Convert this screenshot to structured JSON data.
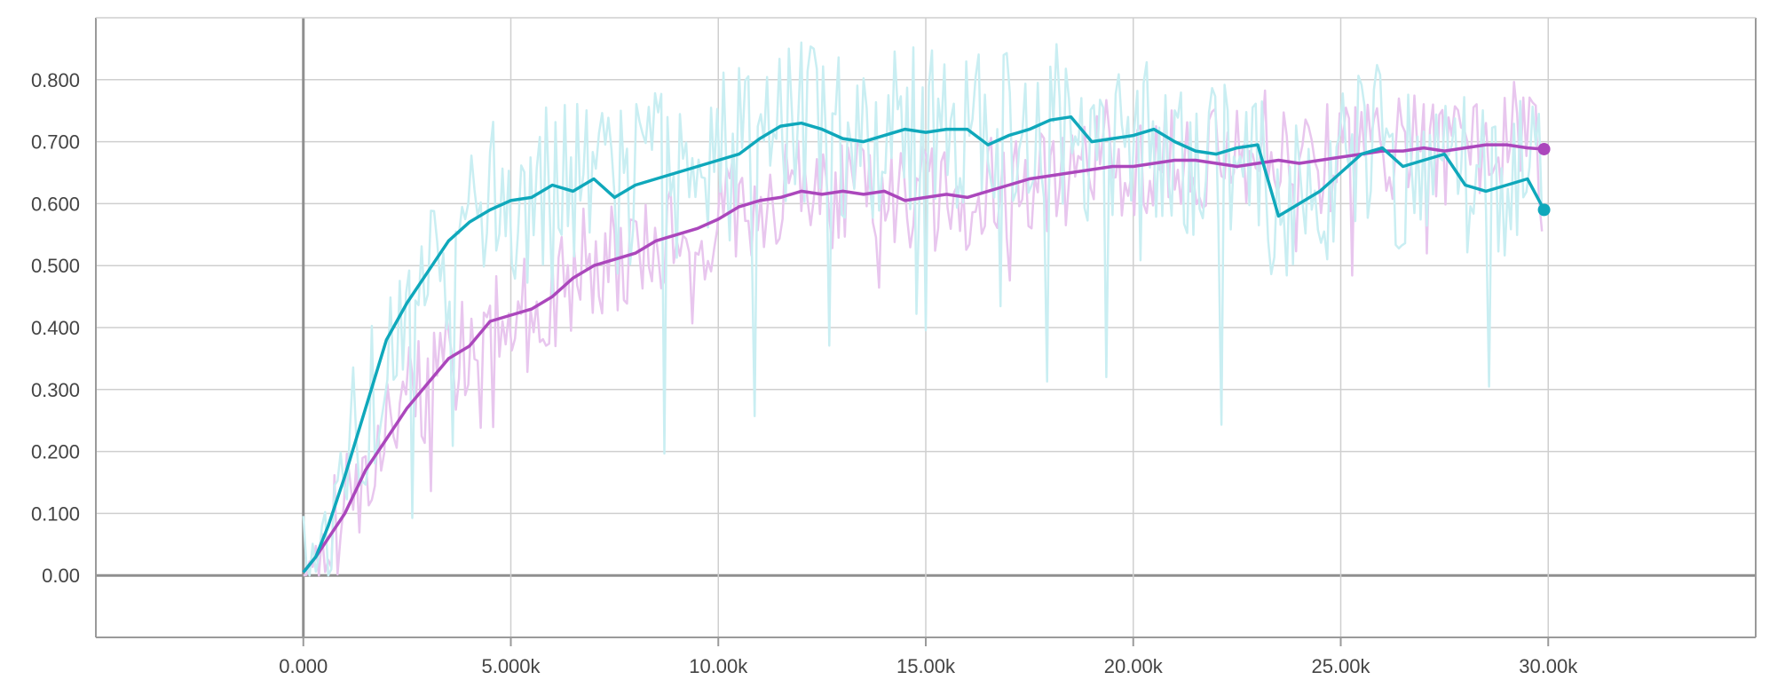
{
  "chart_data": {
    "type": "line",
    "xlim": [
      -5000,
      35000
    ],
    "ylim": [
      -0.1,
      0.9
    ],
    "x_ticks": [
      0,
      5000,
      10000,
      15000,
      20000,
      25000,
      30000
    ],
    "x_tick_labels": [
      "0.000",
      "5.000k",
      "10.00k",
      "15.00k",
      "20.00k",
      "25.00k",
      "30.00k"
    ],
    "y_ticks": [
      0,
      0.1,
      0.2,
      0.3,
      0.4,
      0.5,
      0.6,
      0.7,
      0.8
    ],
    "y_tick_labels": [
      "0.00",
      "0.100",
      "0.200",
      "0.300",
      "0.400",
      "0.500",
      "0.600",
      "0.700",
      "0.800"
    ],
    "grid": true,
    "legend": "none",
    "series": [
      {
        "color": "#ab47bc",
        "raw_color": "#e8c6ee",
        "x": [
          0,
          300,
          600,
          1000,
          1500,
          2000,
          2500,
          3000,
          3500,
          4000,
          4500,
          5000,
          5500,
          6000,
          6500,
          7000,
          7500,
          8000,
          8500,
          9000,
          9500,
          10000,
          10500,
          11000,
          11500,
          12000,
          12500,
          13000,
          13500,
          14000,
          14500,
          15000,
          15500,
          16000,
          16500,
          17000,
          17500,
          18000,
          18500,
          19000,
          19500,
          20000,
          20500,
          21000,
          21500,
          22000,
          22500,
          23000,
          23500,
          24000,
          24500,
          25000,
          25500,
          26000,
          26500,
          27000,
          27500,
          28000,
          28500,
          29000,
          29500,
          29900
        ],
        "smoothed": [
          0.005,
          0.03,
          0.06,
          0.1,
          0.17,
          0.22,
          0.27,
          0.31,
          0.35,
          0.37,
          0.41,
          0.42,
          0.43,
          0.45,
          0.48,
          0.5,
          0.51,
          0.52,
          0.54,
          0.55,
          0.56,
          0.575,
          0.595,
          0.605,
          0.61,
          0.62,
          0.615,
          0.62,
          0.615,
          0.62,
          0.605,
          0.61,
          0.615,
          0.61,
          0.62,
          0.63,
          0.64,
          0.645,
          0.65,
          0.655,
          0.66,
          0.66,
          0.665,
          0.67,
          0.67,
          0.665,
          0.66,
          0.665,
          0.67,
          0.665,
          0.67,
          0.675,
          0.68,
          0.685,
          0.685,
          0.69,
          0.685,
          0.69,
          0.695,
          0.695,
          0.69,
          0.688
        ],
        "last_value": 0.688
      },
      {
        "color": "#0fa8bb",
        "raw_color": "#c9eef2",
        "x": [
          0,
          300,
          600,
          1000,
          1500,
          2000,
          2500,
          3000,
          3500,
          4000,
          4500,
          5000,
          5500,
          6000,
          6500,
          7000,
          7500,
          8000,
          8500,
          9000,
          9500,
          10000,
          10500,
          11000,
          11500,
          12000,
          12500,
          13000,
          13500,
          14000,
          14500,
          15000,
          15500,
          16000,
          16500,
          17000,
          17500,
          18000,
          18500,
          19000,
          19500,
          20000,
          20500,
          21000,
          21500,
          22000,
          22500,
          23000,
          23500,
          24000,
          24500,
          25000,
          25500,
          26000,
          26500,
          27000,
          27500,
          28000,
          28500,
          29000,
          29500,
          29900
        ],
        "smoothed": [
          0.005,
          0.03,
          0.08,
          0.16,
          0.27,
          0.38,
          0.44,
          0.49,
          0.54,
          0.57,
          0.59,
          0.605,
          0.61,
          0.63,
          0.62,
          0.64,
          0.61,
          0.63,
          0.64,
          0.65,
          0.66,
          0.67,
          0.68,
          0.705,
          0.725,
          0.73,
          0.72,
          0.705,
          0.7,
          0.71,
          0.72,
          0.715,
          0.72,
          0.72,
          0.695,
          0.71,
          0.72,
          0.735,
          0.74,
          0.7,
          0.705,
          0.71,
          0.72,
          0.7,
          0.685,
          0.68,
          0.69,
          0.695,
          0.58,
          0.6,
          0.62,
          0.65,
          0.68,
          0.69,
          0.66,
          0.67,
          0.68,
          0.63,
          0.62,
          0.63,
          0.64,
          0.59
        ],
        "last_value": 0.59
      }
    ]
  }
}
